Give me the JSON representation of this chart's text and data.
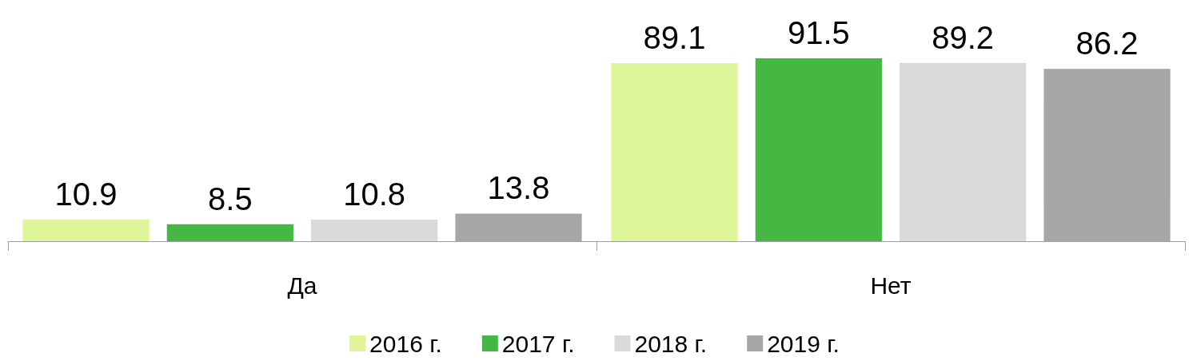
{
  "chart_data": {
    "type": "bar",
    "categories": [
      "Да",
      "Нет"
    ],
    "series": [
      {
        "name": "2016 г.",
        "color": "#dff59a",
        "values": [
          10.9,
          89.1
        ]
      },
      {
        "name": "2017 г.",
        "color": "#45b843",
        "values": [
          8.5,
          91.5
        ]
      },
      {
        "name": "2018 г.",
        "color": "#d9d9d9",
        "values": [
          10.8,
          89.2
        ]
      },
      {
        "name": "2019 г.",
        "color": "#a6a6a6",
        "values": [
          13.8,
          86.2
        ]
      }
    ],
    "data_labels": true,
    "legend": "bottom",
    "tick_labels": "x"
  }
}
